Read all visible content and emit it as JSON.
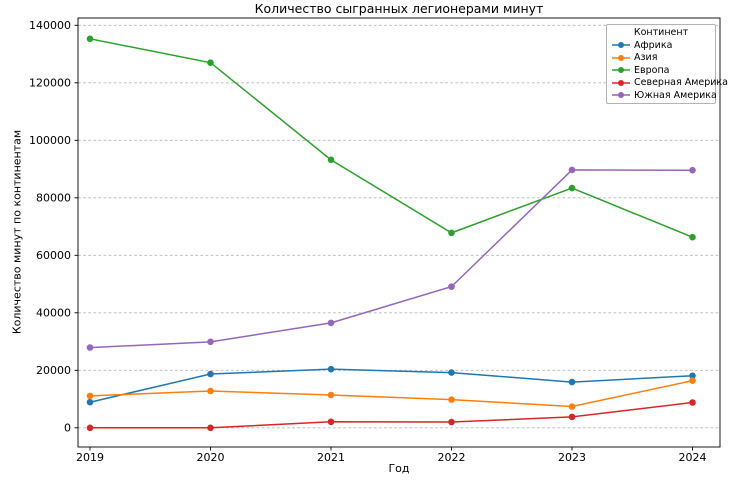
{
  "figure": {
    "title": "Количество сыгранных легионерами минут",
    "xlabel": "Год",
    "ylabel": "Количество минут по континентам"
  },
  "legend": {
    "title": "Континент",
    "position": "upper right",
    "items": [
      {
        "label": "Африка",
        "color": "#1f77b4"
      },
      {
        "label": "Азия",
        "color": "#ff7f0e"
      },
      {
        "label": "Европа",
        "color": "#2ca02c"
      },
      {
        "label": "Северная Америка",
        "color": "#d62728"
      },
      {
        "label": "Южная Америка",
        "color": "#9467bd"
      }
    ]
  },
  "chart_data": {
    "type": "line",
    "title": "Количество сыгранных легионерами минут",
    "xlabel": "Год",
    "ylabel": "Количество минут по континентам",
    "x": [
      2019,
      2020,
      2021,
      2022,
      2023,
      2024
    ],
    "series": [
      {
        "name": "Африка",
        "color": "#1f77b4",
        "values": [
          8900,
          18700,
          20400,
          19200,
          15900,
          18100
        ]
      },
      {
        "name": "Азия",
        "color": "#ff7f0e",
        "values": [
          11100,
          12800,
          11400,
          9800,
          7400,
          16400
        ]
      },
      {
        "name": "Европа",
        "color": "#2ca02c",
        "values": [
          135300,
          127000,
          93200,
          67800,
          83400,
          66300
        ]
      },
      {
        "name": "Северная Америка",
        "color": "#d62728",
        "values": [
          0,
          0,
          2100,
          2000,
          3800,
          8800
        ]
      },
      {
        "name": "Южная Америка",
        "color": "#9467bd",
        "values": [
          27900,
          29900,
          36500,
          49100,
          89700,
          89600
        ]
      }
    ],
    "yticks": [
      0,
      20000,
      40000,
      60000,
      80000,
      100000,
      120000,
      140000
    ],
    "ylim": [
      0,
      140000
    ],
    "grid": "horizontal dotted",
    "grid_color": "#b8b8b8",
    "marker": "o",
    "legend_title": "Континент",
    "legend_position": "upper right"
  }
}
